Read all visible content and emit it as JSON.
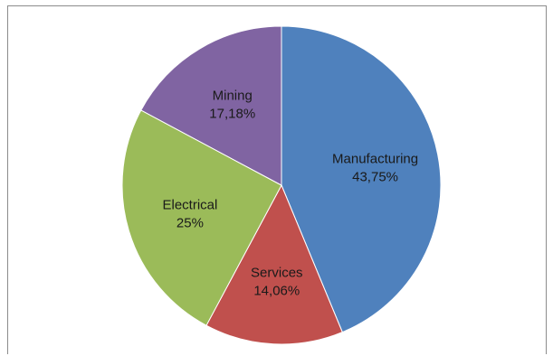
{
  "chart_data": {
    "type": "pie",
    "title": "",
    "slices": [
      {
        "label": "Manufacturing",
        "value": 43.75,
        "value_label": "43,75%",
        "color": "#4f81bd"
      },
      {
        "label": "Services",
        "value": 14.06,
        "value_label": "14,06%",
        "color": "#c0504d"
      },
      {
        "label": "Electrical",
        "value": 25,
        "value_label": "25%",
        "color": "#9bbb59"
      },
      {
        "label": "Mining",
        "value": 17.18,
        "value_label": "17,18%",
        "color": "#8064a2"
      }
    ],
    "start_angle": "12 o'clock",
    "direction": "clockwise",
    "legend": "none"
  }
}
